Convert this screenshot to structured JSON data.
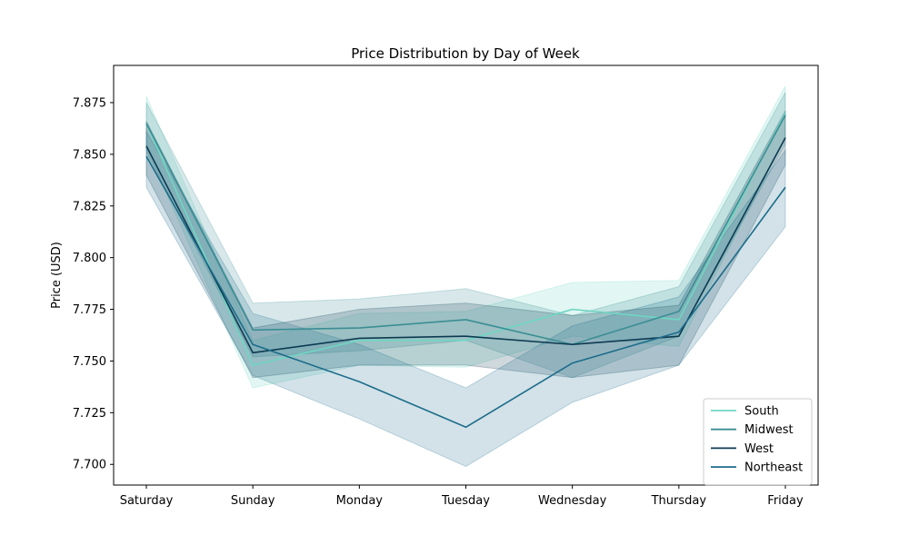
{
  "chart_data": {
    "type": "line",
    "title": "Price Distribution by Day of Week",
    "xlabel": "",
    "ylabel": "Price (USD)",
    "categories": [
      "Saturday",
      "Sunday",
      "Monday",
      "Tuesday",
      "Wednesday",
      "Thursday",
      "Friday"
    ],
    "ylim": [
      7.69,
      7.893
    ],
    "yticks": [
      7.7,
      7.725,
      7.75,
      7.775,
      7.8,
      7.825,
      7.85,
      7.875
    ],
    "ytick_labels": [
      "7.700",
      "7.725",
      "7.750",
      "7.775",
      "7.800",
      "7.825",
      "7.850",
      "7.875"
    ],
    "grid": false,
    "legend_position": "bottom-right",
    "series": [
      {
        "name": "South",
        "color": "#6fd6c3",
        "values": [
          7.865,
          7.748,
          7.76,
          7.76,
          7.775,
          7.77,
          7.87
        ],
        "lower": [
          7.853,
          7.737,
          7.748,
          7.747,
          7.762,
          7.757,
          7.858
        ],
        "upper": [
          7.878,
          7.76,
          7.773,
          7.774,
          7.788,
          7.789,
          7.883
        ]
      },
      {
        "name": "Midwest",
        "color": "#3a8e94",
        "values": [
          7.865,
          7.765,
          7.766,
          7.77,
          7.758,
          7.774,
          7.869
        ],
        "lower": [
          7.851,
          7.752,
          7.755,
          7.76,
          7.742,
          7.762,
          7.855
        ],
        "upper": [
          7.875,
          7.778,
          7.78,
          7.785,
          7.772,
          7.786,
          7.88
        ]
      },
      {
        "name": "West",
        "color": "#0d3a52",
        "values": [
          7.854,
          7.754,
          7.761,
          7.762,
          7.758,
          7.762,
          7.858
        ],
        "lower": [
          7.84,
          7.742,
          7.748,
          7.748,
          7.742,
          7.748,
          7.845
        ],
        "upper": [
          7.866,
          7.766,
          7.775,
          7.778,
          7.772,
          7.777,
          7.871
        ]
      },
      {
        "name": "Northeast",
        "color": "#1c6c8a",
        "values": [
          7.849,
          7.758,
          7.74,
          7.718,
          7.749,
          7.764,
          7.834
        ],
        "lower": [
          7.834,
          7.743,
          7.722,
          7.699,
          7.73,
          7.748,
          7.815
        ],
        "upper": [
          7.861,
          7.773,
          7.758,
          7.737,
          7.767,
          7.781,
          7.852
        ]
      }
    ]
  }
}
